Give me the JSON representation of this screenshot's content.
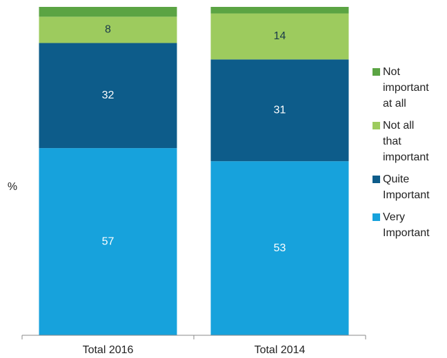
{
  "chart_data": {
    "type": "stacked_bar",
    "y_label": "%",
    "categories": [
      "Total 2016",
      "Total 2014"
    ],
    "series": [
      {
        "name": "Very Important",
        "color": "#17a2dc",
        "label_color": "#ffffff",
        "values": [
          57,
          53
        ]
      },
      {
        "name": "Quite Important",
        "color": "#0d5c8a",
        "label_color": "#ffffff",
        "values": [
          32,
          31
        ]
      },
      {
        "name": "Not all that important",
        "color": "#9dcb5e",
        "label_color": "#1a3a4a",
        "values": [
          8,
          14
        ]
      },
      {
        "name": "Not important at all",
        "color": "#5ba443",
        "label_color": "#1a3a4a",
        "values": [
          3,
          2
        ]
      }
    ],
    "ylim": [
      0,
      100
    ],
    "legend": "right"
  }
}
